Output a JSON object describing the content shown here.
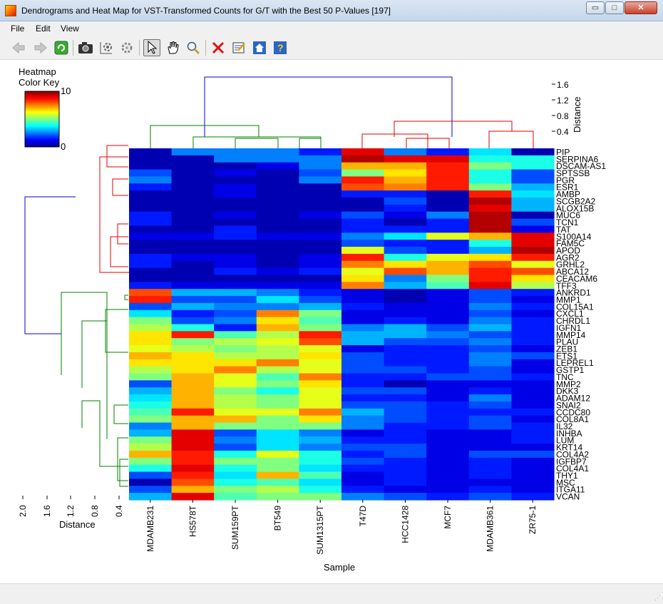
{
  "window": {
    "title": "Dendrograms and Heat Map for VST-Transformed Counts for G/T with the Best 50 P-Values [197]",
    "minimize_glyph": "▭",
    "maximize_glyph": "□",
    "close_glyph": "✕"
  },
  "menu": {
    "file": "File",
    "edit": "Edit",
    "view": "View"
  },
  "toolbar": {
    "icons": [
      "back-arrow-icon",
      "forward-arrow-icon",
      "refresh-icon",
      "camera-icon",
      "settings-grid-icon",
      "gear-icon",
      "pointer-icon",
      "hand-icon",
      "zoom-icon",
      "close-red-icon",
      "edit-notes-icon",
      "home-icon",
      "help-icon"
    ]
  },
  "colors": {
    "top_dendro_root": "#0000cc",
    "cluster_green": "#008000",
    "cluster_red": "#e00000",
    "row_dendro_root": "#0000cc"
  },
  "chart_data": {
    "type": "heatmap",
    "xlabel": "Sample",
    "ylabel": "",
    "color_key": {
      "title_line1": "Heatmap",
      "title_line2": "Color Key",
      "min": 0,
      "max": 10,
      "min_label": "0",
      "max_label": "10",
      "colormap": "jet"
    },
    "col_dendro_axis": {
      "label": "Distance",
      "ticks": [
        "1.6",
        "1.2",
        "0.8",
        "0.4"
      ]
    },
    "row_dendro_axis": {
      "label": "Distance",
      "ticks": [
        "2.0",
        "1.6",
        "1.2",
        "0.8",
        "0.4"
      ]
    },
    "columns": [
      "MDAMB231",
      "HS578T",
      "SUM159PT",
      "BT549",
      "SUM1315PT",
      "T47D",
      "HCC1428",
      "MCF7",
      "MDAMB361",
      "ZR75-1"
    ],
    "rows": [
      "PIP",
      "SERPINA6",
      "DSCAM-AS1",
      "SPTSSB",
      "PGR",
      "ESR1",
      "AMBP",
      "SCGB2A2",
      "ALOX15B",
      "MUC6",
      "TCN1",
      "TAT",
      "S100A14",
      "FAM5C",
      "APOD",
      "AGR2",
      "GRHL2",
      "ABCA12",
      "CEACAM6",
      "TFF3",
      "ANKRD1",
      "MMP1",
      "COL15A1",
      "CXCL1",
      "CHRDL1",
      "IGFN1",
      "MMP14",
      "PLAU",
      "ZEB1",
      "ETS1",
      "LEPREL1",
      "GSTP1",
      "TNC",
      "MMP2",
      "DKK3",
      "ADAM12",
      "SNAI2",
      "CCDC80",
      "COL8A1",
      "IL32",
      "INHBA",
      "LUM",
      "KRT14",
      "COL4A2",
      "IGFBP7",
      "COL4A1",
      "THY1",
      "MSC",
      "ITGA11",
      "VCAN"
    ],
    "values": [
      [
        0.5,
        2.5,
        2.5,
        2.5,
        1.5,
        9,
        2.5,
        1.5,
        3.5,
        0.5
      ],
      [
        0.5,
        0.5,
        2.5,
        2.5,
        2.5,
        9.5,
        9,
        9,
        4,
        4
      ],
      [
        0.5,
        0.5,
        0.5,
        1,
        2.5,
        7,
        7,
        8.5,
        5,
        4
      ],
      [
        2,
        0.5,
        1,
        0.5,
        2,
        5,
        6.5,
        8.5,
        4,
        2
      ],
      [
        2.5,
        0.5,
        0.5,
        0.5,
        2.5,
        8.5,
        7,
        8.5,
        4,
        2
      ],
      [
        1.5,
        0.5,
        1,
        0.5,
        0.5,
        8,
        7.5,
        8.5,
        5,
        3
      ],
      [
        0.5,
        0.5,
        1,
        0.5,
        0.5,
        1.5,
        1.5,
        0.5,
        8.5,
        3.5
      ],
      [
        0.5,
        0.5,
        0.5,
        0.5,
        0.5,
        0.5,
        2,
        0.5,
        9.5,
        3
      ],
      [
        0.5,
        0.5,
        0.5,
        0.5,
        0.5,
        0.5,
        1.5,
        0.5,
        9,
        3
      ],
      [
        1.5,
        0.5,
        1,
        0.5,
        1,
        2,
        1,
        2.5,
        9.5,
        0.5
      ],
      [
        1.5,
        0.5,
        0.5,
        0.5,
        0.5,
        1.5,
        0.5,
        1.5,
        9.5,
        2
      ],
      [
        0.5,
        0.5,
        1.5,
        0.5,
        0.5,
        1.5,
        1.5,
        1.5,
        9.5,
        1
      ],
      [
        1,
        1,
        1.5,
        1,
        1,
        2.5,
        3.5,
        6,
        7,
        9
      ],
      [
        0.5,
        0.5,
        0.5,
        0.5,
        0.5,
        2,
        1.5,
        1.5,
        4,
        9
      ],
      [
        0.5,
        0.5,
        0.5,
        0.5,
        0.5,
        6,
        2,
        1.5,
        3,
        9.5
      ],
      [
        1.5,
        1,
        1,
        0.5,
        1,
        8.5,
        4,
        6,
        6.5,
        8.5
      ],
      [
        1.5,
        0.5,
        1,
        0.5,
        1,
        7.5,
        6.5,
        7,
        8,
        6
      ],
      [
        0.5,
        0.5,
        1.5,
        1,
        1.5,
        6,
        8,
        7,
        8.5,
        8
      ],
      [
        0.5,
        0.5,
        0.5,
        0.5,
        0.5,
        6.5,
        2.5,
        5,
        8.5,
        6.5
      ],
      [
        1.5,
        1,
        1,
        1,
        1,
        7.5,
        3,
        4.5,
        9,
        5.5
      ],
      [
        8,
        3,
        3,
        2.5,
        1.5,
        1,
        0.5,
        1,
        2,
        1.5
      ],
      [
        8.5,
        2,
        2,
        3.5,
        2,
        1,
        0.5,
        1,
        2,
        1
      ],
      [
        2,
        3,
        2.5,
        2.5,
        3,
        1.5,
        1,
        1,
        2.5,
        1.5
      ],
      [
        3.5,
        1.5,
        2,
        7.5,
        5,
        1,
        1,
        1,
        2,
        1
      ],
      [
        5,
        2,
        2.5,
        6.5,
        4.5,
        1,
        1.5,
        1,
        2.5,
        1.5
      ],
      [
        5.5,
        4,
        1.5,
        7,
        5,
        2.5,
        3,
        2,
        3,
        1.5
      ],
      [
        6.5,
        8.5,
        4.5,
        5.5,
        8.5,
        3,
        3,
        2.5,
        2,
        1.5
      ],
      [
        6.5,
        5,
        5.5,
        6,
        8,
        3,
        2,
        2,
        2.5,
        1.5
      ],
      [
        6,
        5.5,
        5,
        5.5,
        6,
        1,
        1.5,
        1.5,
        2,
        1
      ],
      [
        7,
        6.5,
        5.5,
        5.5,
        6.5,
        2,
        1.5,
        1.5,
        2.5,
        2
      ],
      [
        6.5,
        6.5,
        6.5,
        7.5,
        6,
        2,
        1.5,
        1.5,
        2.5,
        1
      ],
      [
        5.5,
        6.5,
        7.5,
        5.5,
        6,
        2,
        2,
        1.5,
        2,
        1
      ],
      [
        5,
        7,
        6,
        4.5,
        7.5,
        1.5,
        1.5,
        2,
        2,
        1.5
      ],
      [
        2,
        7,
        6,
        5,
        6.5,
        1.5,
        0.5,
        1,
        1,
        1
      ],
      [
        3,
        7,
        5,
        4,
        6,
        2,
        2,
        1,
        1.5,
        1
      ],
      [
        3.5,
        7,
        5.5,
        5,
        6,
        1.5,
        1.5,
        1,
        2.5,
        1
      ],
      [
        4,
        7,
        5.5,
        5,
        6,
        2,
        2,
        1.5,
        2,
        1
      ],
      [
        4.5,
        8.5,
        6,
        6,
        7.5,
        3,
        2,
        1.5,
        1.5,
        1.5
      ],
      [
        5,
        7,
        7,
        5,
        6.5,
        2.5,
        2,
        1.5,
        2,
        1
      ],
      [
        2.5,
        7,
        5,
        5,
        5,
        2.5,
        1.5,
        1.5,
        2,
        1.5
      ],
      [
        3,
        9,
        2,
        3.5,
        2.5,
        1,
        1.5,
        1,
        1,
        1.5
      ],
      [
        5,
        9,
        2.5,
        3.5,
        3,
        1.5,
        1.5,
        1,
        1,
        1.5
      ],
      [
        5.5,
        9,
        2,
        3.5,
        2.5,
        2,
        2,
        1,
        1,
        1
      ],
      [
        7,
        8.5,
        4,
        6,
        4,
        1.5,
        2,
        1,
        2,
        2
      ],
      [
        5,
        8.5,
        5,
        5,
        4,
        2,
        1.5,
        1,
        1.5,
        1
      ],
      [
        4,
        9,
        4,
        5,
        3.5,
        1.5,
        1.5,
        1,
        1.5,
        1
      ],
      [
        2,
        8.5,
        3.5,
        7,
        4.5,
        1,
        1.5,
        1,
        1.5,
        1
      ],
      [
        0.5,
        8,
        4,
        4.5,
        3.5,
        1,
        1.5,
        1,
        1,
        1
      ],
      [
        2,
        7,
        5,
        5.5,
        4,
        1.5,
        1,
        1,
        1.5,
        1
      ],
      [
        3,
        9,
        4.5,
        5,
        5,
        2.5,
        2,
        1.5,
        2,
        1.5
      ]
    ]
  }
}
